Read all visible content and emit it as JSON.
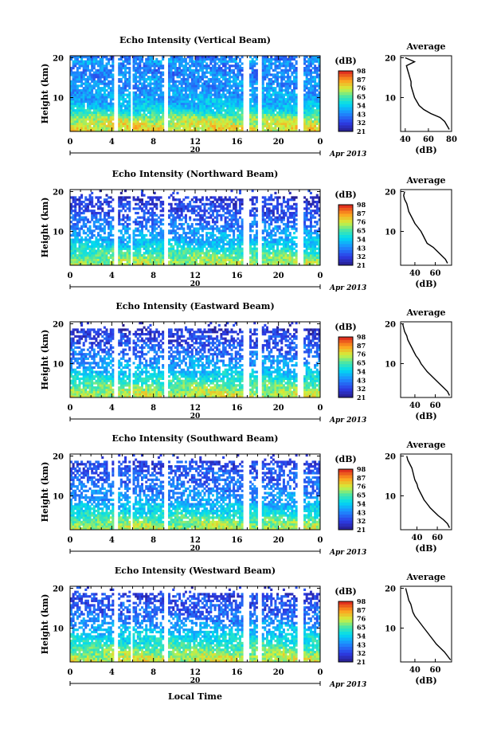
{
  "figure": {
    "xlabel": "Local Time",
    "date_label": "Apr 2013",
    "day_label": "20",
    "x_ticks": [
      "0",
      "4",
      "8",
      "12",
      "16",
      "20",
      "0"
    ],
    "y_label": "Height (km)",
    "y_ticks": [
      "20",
      "10"
    ],
    "cbar_title": "(dB)",
    "cbar_ticks": [
      "98",
      "87",
      "76",
      "65",
      "54",
      "43",
      "32",
      "21"
    ],
    "avg_title": "Average",
    "avg_xlabel": "(dB)"
  },
  "chart_data": [
    {
      "type": "heatmap",
      "title": "Echo Intensity (Vertical Beam)",
      "xlabel": "Local Time",
      "ylabel": "Height (km)",
      "xlim": [
        0,
        24
      ],
      "ylim": [
        1.5,
        20.5
      ],
      "colorbar": {
        "label": "(dB)",
        "range": [
          21,
          98
        ]
      },
      "gaps_hours": [
        [
          4.2,
          4.6
        ],
        [
          5.7,
          6.0
        ],
        [
          9.0,
          9.4
        ],
        [
          16.7,
          17.1
        ],
        [
          18.0,
          18.3
        ],
        [
          21.9,
          22.4
        ]
      ],
      "profile": {
        "title": "Average",
        "xlabel": "(dB)",
        "xlim": [
          36,
          80
        ],
        "x_ticks": [
          "40",
          "60",
          "80"
        ],
        "heights": [
          2,
          3,
          4,
          5,
          6,
          7,
          8,
          9,
          10,
          11,
          12,
          13,
          14,
          15,
          16,
          17,
          18,
          19,
          20
        ],
        "values": [
          78,
          76,
          74,
          70,
          62,
          56,
          52,
          50,
          48,
          47,
          46,
          45,
          45,
          44,
          43,
          42,
          41,
          48,
          40
        ]
      }
    },
    {
      "type": "heatmap",
      "title": "Echo Intensity (Northward Beam)",
      "xlabel": "Local Time",
      "ylabel": "Height (km)",
      "xlim": [
        0,
        24
      ],
      "ylim": [
        1.5,
        20.5
      ],
      "colorbar": {
        "label": "(dB)",
        "range": [
          21,
          98
        ]
      },
      "gaps_hours": [
        [
          4.2,
          4.6
        ],
        [
          5.7,
          6.0
        ],
        [
          9.0,
          9.4
        ],
        [
          16.7,
          17.1
        ],
        [
          18.0,
          18.3
        ],
        [
          21.9,
          22.4
        ]
      ],
      "profile": {
        "title": "Average",
        "xlabel": "(dB)",
        "xlim": [
          26,
          76
        ],
        "x_ticks": [
          "40",
          "60"
        ],
        "heights": [
          2,
          3,
          4,
          5,
          6,
          7,
          8,
          9,
          10,
          11,
          12,
          13,
          14,
          15,
          16,
          17,
          18,
          19,
          20
        ],
        "values": [
          72,
          70,
          66,
          62,
          58,
          52,
          50,
          48,
          46,
          43,
          40,
          38,
          36,
          34,
          33,
          32,
          30,
          29,
          30
        ]
      }
    },
    {
      "type": "heatmap",
      "title": "Echo Intensity (Eastward Beam)",
      "xlabel": "Local Time",
      "ylabel": "Height (km)",
      "xlim": [
        0,
        24
      ],
      "ylim": [
        1.5,
        20.5
      ],
      "colorbar": {
        "label": "(dB)",
        "range": [
          21,
          98
        ]
      },
      "gaps_hours": [
        [
          4.2,
          4.6
        ],
        [
          5.7,
          6.0
        ],
        [
          9.0,
          9.4
        ],
        [
          16.7,
          17.1
        ],
        [
          18.0,
          18.3
        ],
        [
          21.9,
          22.4
        ]
      ],
      "profile": {
        "title": "Average",
        "xlabel": "(dB)",
        "xlim": [
          26,
          76
        ],
        "x_ticks": [
          "40",
          "60"
        ],
        "heights": [
          2,
          3,
          4,
          5,
          6,
          7,
          8,
          9,
          10,
          11,
          12,
          13,
          14,
          15,
          16,
          17,
          18,
          19,
          20
        ],
        "values": [
          74,
          72,
          68,
          64,
          60,
          56,
          52,
          49,
          46,
          44,
          41,
          39,
          37,
          35,
          33,
          32,
          30,
          29,
          28
        ]
      }
    },
    {
      "type": "heatmap",
      "title": "Echo Intensity (Southward Beam)",
      "xlabel": "Local Time",
      "ylabel": "Height (km)",
      "xlim": [
        0,
        24
      ],
      "ylim": [
        1.5,
        20.5
      ],
      "colorbar": {
        "label": "(dB)",
        "range": [
          21,
          98
        ]
      },
      "gaps_hours": [
        [
          4.2,
          4.6
        ],
        [
          5.7,
          6.0
        ],
        [
          9.0,
          9.4
        ],
        [
          16.7,
          17.1
        ],
        [
          18.0,
          18.3
        ],
        [
          21.9,
          22.4
        ]
      ],
      "profile": {
        "title": "Average",
        "xlabel": "(dB)",
        "xlim": [
          24,
          74
        ],
        "x_ticks": [
          "40",
          "60"
        ],
        "heights": [
          2,
          3,
          4,
          5,
          6,
          7,
          8,
          9,
          10,
          11,
          12,
          13,
          14,
          15,
          16,
          17,
          18,
          19,
          20
        ],
        "values": [
          72,
          70,
          66,
          61,
          57,
          53,
          50,
          47,
          45,
          43,
          41,
          40,
          38,
          37,
          36,
          35,
          33,
          31,
          30
        ]
      }
    },
    {
      "type": "heatmap",
      "title": "Echo Intensity (Westward Beam)",
      "xlabel": "Local Time",
      "ylabel": "Height (km)",
      "xlim": [
        0,
        24
      ],
      "ylim": [
        1.5,
        20.5
      ],
      "colorbar": {
        "label": "(dB)",
        "range": [
          21,
          98
        ]
      },
      "gaps_hours": [
        [
          4.2,
          4.6
        ],
        [
          5.7,
          6.0
        ],
        [
          9.0,
          9.4
        ],
        [
          16.7,
          17.1
        ],
        [
          18.0,
          18.3
        ],
        [
          21.9,
          22.4
        ]
      ],
      "profile": {
        "title": "Average",
        "xlabel": "(dB)",
        "xlim": [
          26,
          76
        ],
        "x_ticks": [
          "40",
          "60"
        ],
        "heights": [
          2,
          3,
          4,
          5,
          6,
          7,
          8,
          9,
          10,
          11,
          12,
          13,
          14,
          15,
          16,
          17,
          18,
          19,
          20
        ],
        "values": [
          75,
          72,
          69,
          65,
          61,
          58,
          55,
          52,
          49,
          46,
          43,
          40,
          38,
          37,
          36,
          34,
          33,
          32,
          31
        ]
      }
    }
  ]
}
